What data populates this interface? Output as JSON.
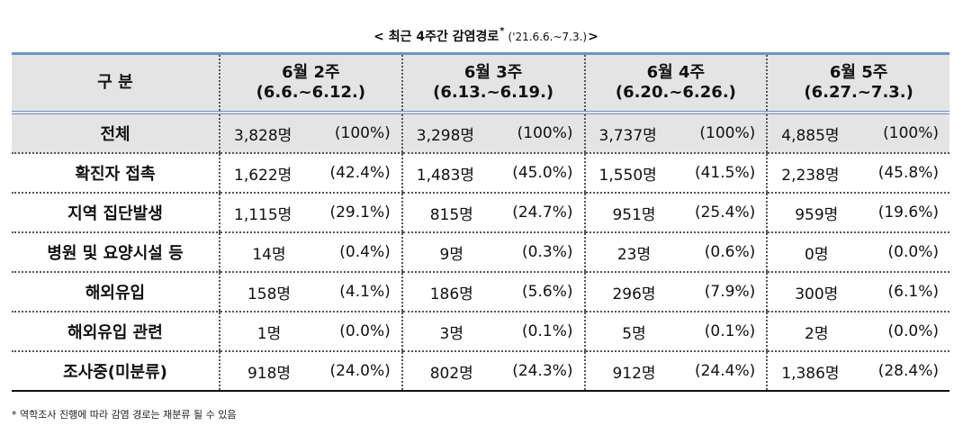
{
  "title": {
    "main": "< 최근 4주간 감염경로",
    "star": "*",
    "period": "('21.6.6.~7.3.)",
    "close": ">"
  },
  "table": {
    "header": {
      "category": "구 분",
      "weeks": [
        {
          "line1": "6월 2주",
          "line2": "(6.6.~6.12.)"
        },
        {
          "line1": "6월 3주",
          "line2": "(6.13.~6.19.)"
        },
        {
          "line1": "6월 4주",
          "line2": "(6.20.~6.26.)"
        },
        {
          "line1": "6월 5주",
          "line2": "(6.27.~7.3.)"
        }
      ]
    },
    "rows": [
      {
        "label": "전체",
        "cells": [
          {
            "count": "3,828명",
            "pct": "(100%)"
          },
          {
            "count": "3,298명",
            "pct": "(100%)"
          },
          {
            "count": "3,737명",
            "pct": "(100%)"
          },
          {
            "count": "4,885명",
            "pct": "(100%)"
          }
        ]
      },
      {
        "label": "확진자 접촉",
        "cells": [
          {
            "count": "1,622명",
            "pct": "(42.4%)"
          },
          {
            "count": "1,483명",
            "pct": "(45.0%)"
          },
          {
            "count": "1,550명",
            "pct": "(41.5%)"
          },
          {
            "count": "2,238명",
            "pct": "(45.8%)"
          }
        ]
      },
      {
        "label": "지역 집단발생",
        "cells": [
          {
            "count": "1,115명",
            "pct": "(29.1%)"
          },
          {
            "count": "815명",
            "pct": "(24.7%)"
          },
          {
            "count": "951명",
            "pct": "(25.4%)"
          },
          {
            "count": "959명",
            "pct": "(19.6%)"
          }
        ]
      },
      {
        "label": "병원 및 요양시설 등",
        "cells": [
          {
            "count": "14명",
            "pct": "(0.4%)"
          },
          {
            "count": "9명",
            "pct": "(0.3%)"
          },
          {
            "count": "23명",
            "pct": "(0.6%)"
          },
          {
            "count": "0명",
            "pct": "(0.0%)"
          }
        ]
      },
      {
        "label": "해외유입",
        "cells": [
          {
            "count": "158명",
            "pct": "(4.1%)"
          },
          {
            "count": "186명",
            "pct": "(5.6%)"
          },
          {
            "count": "296명",
            "pct": "(7.9%)"
          },
          {
            "count": "300명",
            "pct": "(6.1%)"
          }
        ]
      },
      {
        "label": "해외유입 관련",
        "cells": [
          {
            "count": "1명",
            "pct": "(0.0%)"
          },
          {
            "count": "3명",
            "pct": "(0.1%)"
          },
          {
            "count": "5명",
            "pct": "(0.1%)"
          },
          {
            "count": "2명",
            "pct": "(0.0%)"
          }
        ]
      },
      {
        "label": "조사중(미분류)",
        "cells": [
          {
            "count": "918명",
            "pct": "(24.0%)"
          },
          {
            "count": "802명",
            "pct": "(24.3%)"
          },
          {
            "count": "912명",
            "pct": "(24.4%)"
          },
          {
            "count": "1,386명",
            "pct": "(28.4%)"
          }
        ]
      }
    ]
  },
  "footnote": "* 역학조사 진행에 따라 감염 경로는 재분류 될 수 있음",
  "colors": {
    "header_bg": "#e4e4e4",
    "rule_blue": "#6d93c6"
  }
}
